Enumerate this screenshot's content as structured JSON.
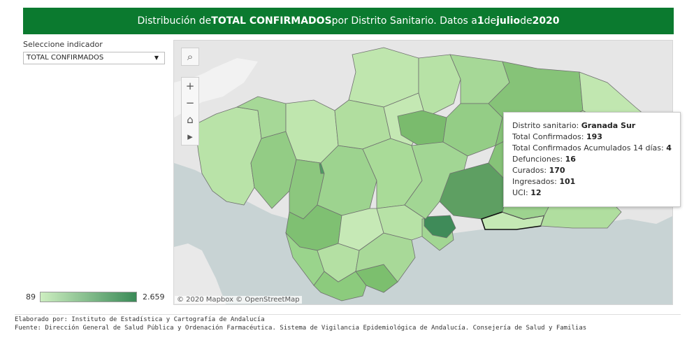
{
  "header": {
    "part1": "Distribución de ",
    "indicator": "TOTAL CONFIRMADOS",
    "part2": " por Distrito Sanitario. Datos a ",
    "day": "1",
    "part3": " de ",
    "month": "julio",
    "part4": " de ",
    "year": "2020"
  },
  "filter": {
    "label": "Seleccione indicador",
    "selected": "TOTAL CONFIRMADOS"
  },
  "map_tools": {
    "search": "⌕",
    "zoom_in": "+",
    "zoom_out": "−",
    "home": "⌂",
    "pan": "▸"
  },
  "attribution": "© 2020 Mapbox © OpenStreetMap",
  "tooltip": {
    "district_label": "Distrito sanitario: ",
    "district_value": "Granada Sur",
    "confirmados_label": "Total Confirmados: ",
    "confirmados_value": "193",
    "acumulados_label": "Total Confirmados Acumulados 14 días: ",
    "acumulados_value": "4",
    "defunciones_label": "Defunciones: ",
    "defunciones_value": "16",
    "curados_label": "Curados: ",
    "curados_value": "170",
    "ingresados_label": "Ingresados: ",
    "ingresados_value": "101",
    "uci_label": "UCI: ",
    "uci_value": "12"
  },
  "legend": {
    "min": "89",
    "max": "2.659",
    "color_min": "#cdeec0",
    "color_max": "#3a8a57"
  },
  "footer": {
    "line1": "Elaborado por: Instituto de Estadística y Cartografía de Andalucía",
    "line2": "Fuente: Dirección General de Salud Pública y Ordenación Farmacéutica. Sistema de Vigilancia Epidemiológica de Andalucía. Consejería de Salud y Familias"
  },
  "colors": {
    "header_bg": "#0b7a2f",
    "sea": "#c8d3d4",
    "land": "#e6e6e6"
  }
}
